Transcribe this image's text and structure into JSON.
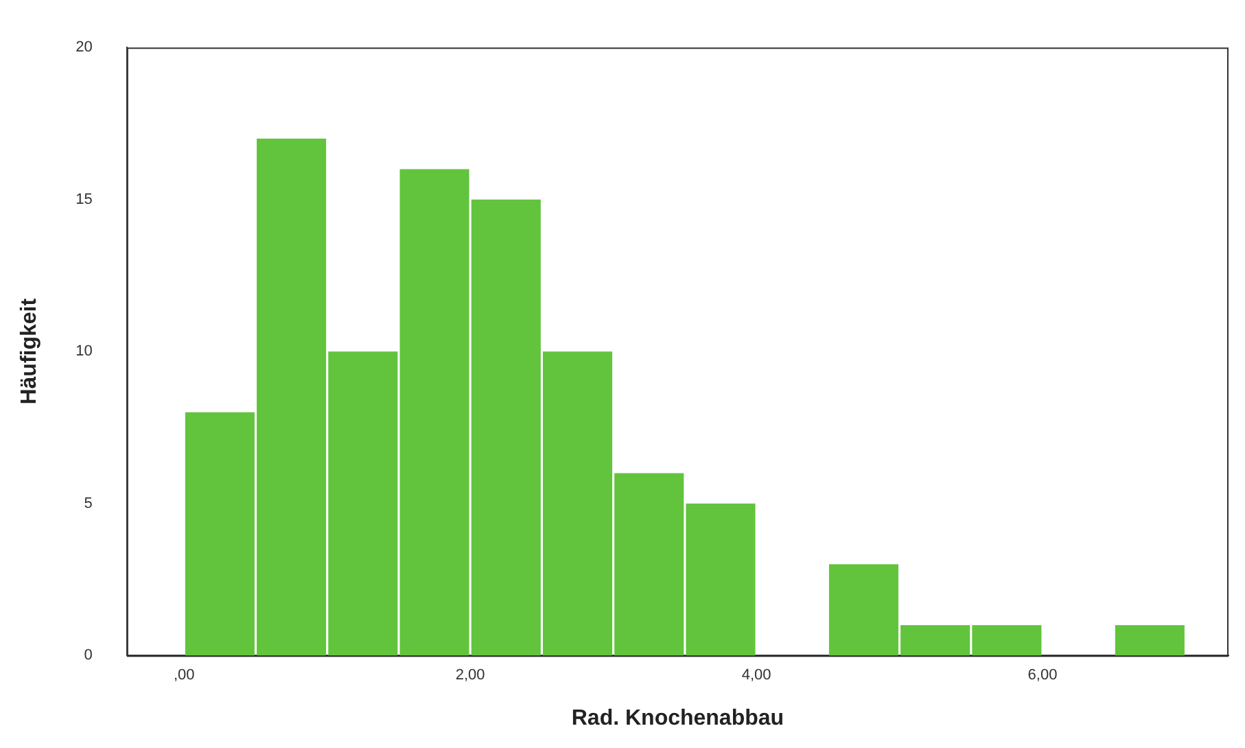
{
  "chart_data": {
    "type": "histogram",
    "xlabel": "Rad. Knochenabbau",
    "ylabel": "Häufigkeit",
    "bins": [
      0,
      0.5,
      1,
      1.5,
      2,
      2.5,
      3,
      3.5,
      4,
      4.5,
      5,
      5.5,
      6,
      6.5,
      7
    ],
    "values": [
      8,
      17,
      10,
      16,
      15,
      10,
      6,
      5,
      0,
      3,
      1,
      1,
      0,
      1
    ],
    "color": "#62c43c",
    "xlim": [
      -0.4,
      7.3
    ],
    "xticks": [
      {
        "value": 0,
        "label": ",00"
      },
      {
        "value": 2,
        "label": "2,00"
      },
      {
        "value": 4,
        "label": "4,00"
      },
      {
        "value": 6,
        "label": "6,00"
      }
    ],
    "ylim": [
      0,
      20
    ],
    "yticks": [
      0,
      5,
      10,
      15,
      20
    ],
    "grid": false,
    "legend": false
  }
}
